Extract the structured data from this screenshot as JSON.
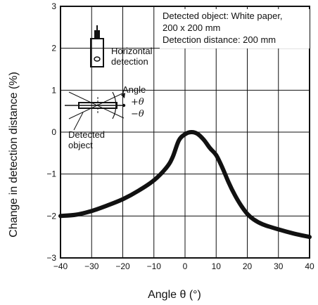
{
  "chart_data": {
    "type": "line",
    "xlabel": "Angle θ (°)",
    "ylabel": "Change in detection distance  (%)",
    "xlim": [
      -40,
      40
    ],
    "ylim": [
      -3,
      3
    ],
    "x_ticks": [
      -40,
      -30,
      -20,
      -10,
      0,
      10,
      20,
      30,
      40
    ],
    "y_ticks": [
      -3,
      -2,
      -1,
      0,
      1,
      2,
      3
    ],
    "x_tick_labels": [
      "−40",
      "−30",
      "−20",
      "−10",
      "0",
      "10",
      "20",
      "30",
      "40"
    ],
    "y_tick_labels": [
      "−3",
      "−2",
      "−1",
      "0",
      "1",
      "2",
      "3"
    ],
    "grid": true,
    "series": [
      {
        "x": [
          -40,
          -35,
          -30,
          -25,
          -20,
          -15,
          -10,
          -6,
          -4,
          -2,
          0,
          2,
          4,
          6,
          8,
          10,
          12,
          14,
          16,
          18,
          20,
          22,
          25,
          30,
          35,
          40
        ],
        "y": [
          -2.0,
          -1.97,
          -1.88,
          -1.75,
          -1.6,
          -1.4,
          -1.15,
          -0.85,
          -0.6,
          -0.2,
          -0.05,
          0.0,
          -0.04,
          -0.18,
          -0.38,
          -0.55,
          -0.85,
          -1.2,
          -1.5,
          -1.75,
          -1.95,
          -2.08,
          -2.2,
          -2.32,
          -2.42,
          -2.5
        ]
      }
    ],
    "annotation_lines": [
      "Detected object: White paper,",
      "200 x 200 mm",
      "Detection distance: 200 mm"
    ],
    "inset_labels": {
      "horizontal": [
        "Horizontal",
        "detection"
      ],
      "angle": "Angle",
      "plus_theta": "+θ",
      "minus_theta": "−θ",
      "object": [
        "Detected",
        "object"
      ]
    }
  }
}
